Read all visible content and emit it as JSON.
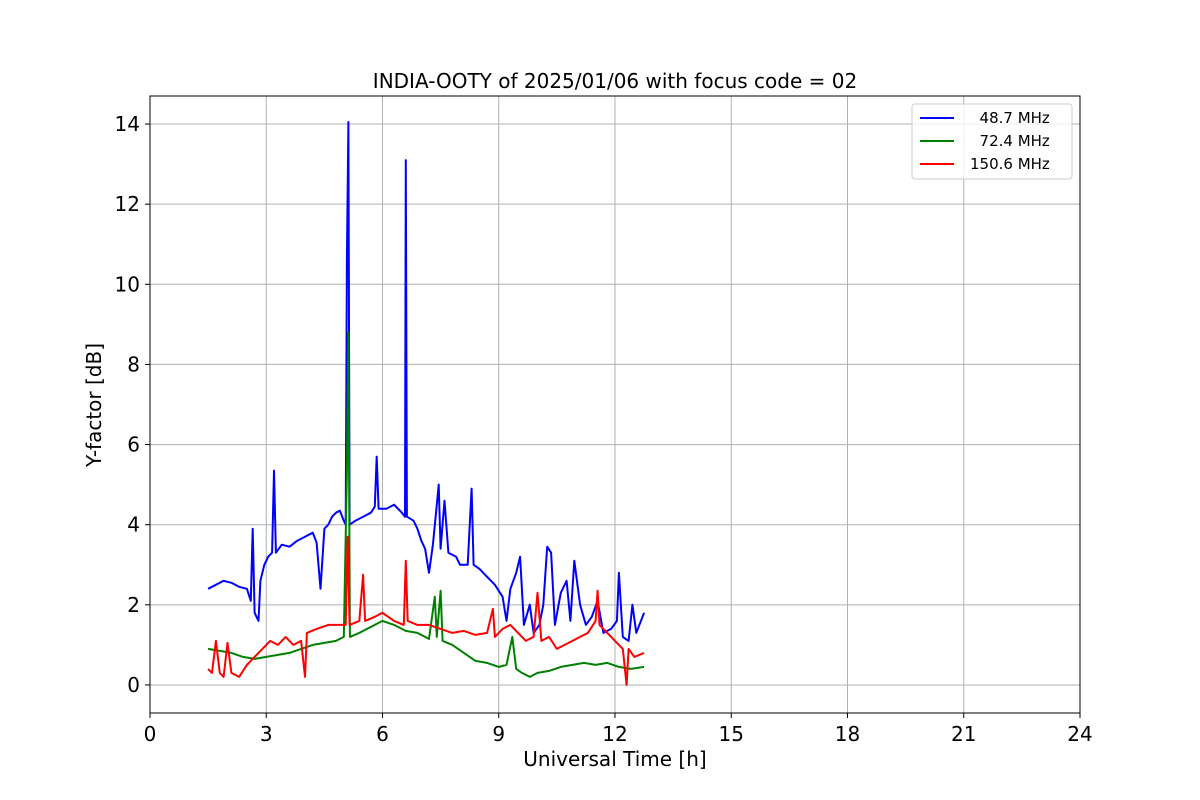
{
  "chart_data": {
    "type": "line",
    "title": "INDIA-OOTY of 2025/01/06 with focus code = 02",
    "xlabel": "Universal Time [h]",
    "ylabel": "Y-factor [dB]",
    "xlim": [
      0,
      24
    ],
    "ylim": [
      -0.7,
      14.7
    ],
    "xticks": [
      0,
      3,
      6,
      9,
      12,
      15,
      18,
      21,
      24
    ],
    "yticks": [
      0,
      2,
      4,
      6,
      8,
      10,
      12,
      14
    ],
    "grid": true,
    "legend_position": "top-right",
    "series": [
      {
        "name": "  48.7 MHz",
        "color": "#0000ff",
        "points": [
          [
            1.5,
            2.4
          ],
          [
            1.7,
            2.5
          ],
          [
            1.9,
            2.6
          ],
          [
            2.1,
            2.55
          ],
          [
            2.3,
            2.45
          ],
          [
            2.5,
            2.4
          ],
          [
            2.6,
            2.1
          ],
          [
            2.65,
            3.9
          ],
          [
            2.7,
            1.8
          ],
          [
            2.8,
            1.6
          ],
          [
            2.85,
            2.6
          ],
          [
            2.95,
            3.0
          ],
          [
            3.05,
            3.2
          ],
          [
            3.15,
            3.3
          ],
          [
            3.2,
            5.35
          ],
          [
            3.25,
            3.3
          ],
          [
            3.4,
            3.5
          ],
          [
            3.6,
            3.45
          ],
          [
            3.8,
            3.6
          ],
          [
            4.0,
            3.7
          ],
          [
            4.2,
            3.8
          ],
          [
            4.3,
            3.55
          ],
          [
            4.4,
            2.4
          ],
          [
            4.5,
            3.9
          ],
          [
            4.6,
            4.0
          ],
          [
            4.7,
            4.2
          ],
          [
            4.8,
            4.3
          ],
          [
            4.9,
            4.35
          ],
          [
            5.0,
            4.1
          ],
          [
            5.05,
            4.0
          ],
          [
            5.08,
            10.6
          ],
          [
            5.12,
            14.05
          ],
          [
            5.15,
            4.0
          ],
          [
            5.3,
            4.1
          ],
          [
            5.5,
            4.2
          ],
          [
            5.7,
            4.3
          ],
          [
            5.8,
            4.45
          ],
          [
            5.85,
            5.7
          ],
          [
            5.9,
            4.4
          ],
          [
            6.1,
            4.4
          ],
          [
            6.3,
            4.5
          ],
          [
            6.5,
            4.3
          ],
          [
            6.58,
            4.2
          ],
          [
            6.6,
            13.1
          ],
          [
            6.63,
            4.2
          ],
          [
            6.8,
            4.1
          ],
          [
            6.9,
            3.9
          ],
          [
            7.0,
            3.6
          ],
          [
            7.1,
            3.4
          ],
          [
            7.2,
            2.8
          ],
          [
            7.3,
            3.5
          ],
          [
            7.4,
            4.5
          ],
          [
            7.45,
            5.0
          ],
          [
            7.5,
            3.4
          ],
          [
            7.6,
            4.6
          ],
          [
            7.7,
            3.3
          ],
          [
            7.9,
            3.2
          ],
          [
            8.0,
            3.0
          ],
          [
            8.2,
            3.0
          ],
          [
            8.3,
            4.9
          ],
          [
            8.35,
            3.0
          ],
          [
            8.5,
            2.9
          ],
          [
            8.7,
            2.7
          ],
          [
            8.9,
            2.5
          ],
          [
            9.1,
            2.2
          ],
          [
            9.2,
            1.6
          ],
          [
            9.3,
            2.4
          ],
          [
            9.45,
            2.8
          ],
          [
            9.55,
            3.2
          ],
          [
            9.65,
            1.5
          ],
          [
            9.8,
            2.0
          ],
          [
            9.9,
            1.3
          ],
          [
            10.05,
            1.5
          ],
          [
            10.15,
            2.0
          ],
          [
            10.25,
            3.45
          ],
          [
            10.35,
            3.3
          ],
          [
            10.45,
            1.5
          ],
          [
            10.6,
            2.3
          ],
          [
            10.75,
            2.6
          ],
          [
            10.85,
            1.6
          ],
          [
            10.95,
            3.1
          ],
          [
            11.1,
            2.0
          ],
          [
            11.25,
            1.5
          ],
          [
            11.4,
            1.7
          ],
          [
            11.55,
            2.1
          ],
          [
            11.7,
            1.3
          ],
          [
            11.9,
            1.4
          ],
          [
            12.05,
            1.6
          ],
          [
            12.1,
            2.8
          ],
          [
            12.2,
            1.2
          ],
          [
            12.35,
            1.1
          ],
          [
            12.45,
            2.0
          ],
          [
            12.55,
            1.3
          ],
          [
            12.75,
            1.8
          ]
        ]
      },
      {
        "name": "  72.4 MHz",
        "color": "#008000",
        "points": [
          [
            1.5,
            0.9
          ],
          [
            1.8,
            0.85
          ],
          [
            2.1,
            0.8
          ],
          [
            2.4,
            0.7
          ],
          [
            2.7,
            0.65
          ],
          [
            3.0,
            0.7
          ],
          [
            3.3,
            0.75
          ],
          [
            3.6,
            0.8
          ],
          [
            3.9,
            0.9
          ],
          [
            4.2,
            1.0
          ],
          [
            4.5,
            1.05
          ],
          [
            4.8,
            1.1
          ],
          [
            5.0,
            1.2
          ],
          [
            5.08,
            5.3
          ],
          [
            5.12,
            8.8
          ],
          [
            5.16,
            1.2
          ],
          [
            5.4,
            1.3
          ],
          [
            5.7,
            1.45
          ],
          [
            6.0,
            1.6
          ],
          [
            6.3,
            1.5
          ],
          [
            6.6,
            1.35
          ],
          [
            6.9,
            1.3
          ],
          [
            7.2,
            1.15
          ],
          [
            7.35,
            2.2
          ],
          [
            7.4,
            1.2
          ],
          [
            7.5,
            2.35
          ],
          [
            7.55,
            1.1
          ],
          [
            7.8,
            1.0
          ],
          [
            8.1,
            0.8
          ],
          [
            8.4,
            0.6
          ],
          [
            8.7,
            0.55
          ],
          [
            9.0,
            0.45
          ],
          [
            9.2,
            0.5
          ],
          [
            9.35,
            1.2
          ],
          [
            9.45,
            0.4
          ],
          [
            9.6,
            0.3
          ],
          [
            9.8,
            0.2
          ],
          [
            10.0,
            0.3
          ],
          [
            10.3,
            0.35
          ],
          [
            10.6,
            0.45
          ],
          [
            10.9,
            0.5
          ],
          [
            11.2,
            0.55
          ],
          [
            11.5,
            0.5
          ],
          [
            11.8,
            0.55
          ],
          [
            12.1,
            0.45
          ],
          [
            12.4,
            0.4
          ],
          [
            12.75,
            0.45
          ]
        ]
      },
      {
        "name": "150.6 MHz",
        "color": "#ff0000",
        "points": [
          [
            1.5,
            0.4
          ],
          [
            1.6,
            0.3
          ],
          [
            1.7,
            1.1
          ],
          [
            1.8,
            0.3
          ],
          [
            1.9,
            0.2
          ],
          [
            2.0,
            1.05
          ],
          [
            2.1,
            0.3
          ],
          [
            2.3,
            0.2
          ],
          [
            2.5,
            0.5
          ],
          [
            2.7,
            0.7
          ],
          [
            2.9,
            0.9
          ],
          [
            3.1,
            1.1
          ],
          [
            3.3,
            1.0
          ],
          [
            3.5,
            1.2
          ],
          [
            3.7,
            1.0
          ],
          [
            3.9,
            1.1
          ],
          [
            4.0,
            0.2
          ],
          [
            4.05,
            1.3
          ],
          [
            4.3,
            1.4
          ],
          [
            4.6,
            1.5
          ],
          [
            4.9,
            1.5
          ],
          [
            5.05,
            1.5
          ],
          [
            5.1,
            3.7
          ],
          [
            5.15,
            1.5
          ],
          [
            5.4,
            1.6
          ],
          [
            5.5,
            2.75
          ],
          [
            5.55,
            1.6
          ],
          [
            5.8,
            1.7
          ],
          [
            6.0,
            1.8
          ],
          [
            6.3,
            1.6
          ],
          [
            6.55,
            1.5
          ],
          [
            6.6,
            3.1
          ],
          [
            6.65,
            1.6
          ],
          [
            6.9,
            1.5
          ],
          [
            7.2,
            1.5
          ],
          [
            7.5,
            1.4
          ],
          [
            7.8,
            1.3
          ],
          [
            8.1,
            1.35
          ],
          [
            8.4,
            1.25
          ],
          [
            8.7,
            1.3
          ],
          [
            8.85,
            1.9
          ],
          [
            8.9,
            1.2
          ],
          [
            9.1,
            1.4
          ],
          [
            9.3,
            1.5
          ],
          [
            9.5,
            1.3
          ],
          [
            9.7,
            1.1
          ],
          [
            9.9,
            1.2
          ],
          [
            10.0,
            2.3
          ],
          [
            10.1,
            1.1
          ],
          [
            10.3,
            1.2
          ],
          [
            10.5,
            0.9
          ],
          [
            10.7,
            1.0
          ],
          [
            10.9,
            1.1
          ],
          [
            11.1,
            1.2
          ],
          [
            11.3,
            1.3
          ],
          [
            11.5,
            1.6
          ],
          [
            11.55,
            2.35
          ],
          [
            11.6,
            1.5
          ],
          [
            11.8,
            1.3
          ],
          [
            12.0,
            1.1
          ],
          [
            12.2,
            0.9
          ],
          [
            12.3,
            0.0
          ],
          [
            12.35,
            0.9
          ],
          [
            12.5,
            0.7
          ],
          [
            12.75,
            0.8
          ]
        ]
      }
    ]
  }
}
